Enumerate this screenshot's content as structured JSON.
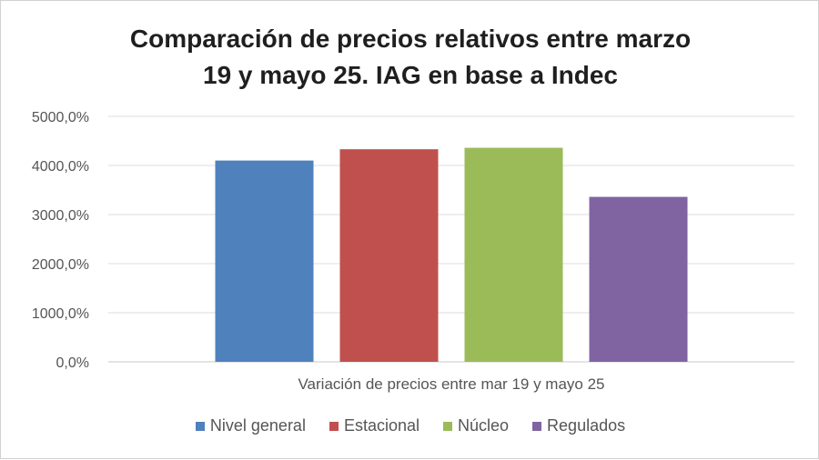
{
  "chart_data": {
    "type": "bar",
    "title_lines": [
      "Comparación de precios relativos entre marzo",
      "19 y mayo 25. IAG en base a Indec"
    ],
    "categories": [
      "Variación de precios entre mar 19 y mayo 25"
    ],
    "series": [
      {
        "name": "Nivel general",
        "values": [
          4100
        ],
        "color": "#4f81bd"
      },
      {
        "name": "Estacional",
        "values": [
          4330
        ],
        "color": "#c0504d"
      },
      {
        "name": "Núcleo",
        "values": [
          4360
        ],
        "color": "#9bbb59"
      },
      {
        "name": "Regulados",
        "values": [
          3360
        ],
        "color": "#8064a2"
      }
    ],
    "ylim": [
      0,
      5000
    ],
    "yticks": [
      {
        "value": 0,
        "label": "0,0%"
      },
      {
        "value": 1000,
        "label": "1000,0%"
      },
      {
        "value": 2000,
        "label": "2000,0%"
      },
      {
        "value": 3000,
        "label": "3000,0%"
      },
      {
        "value": 4000,
        "label": "4000,0%"
      },
      {
        "value": 5000,
        "label": "5000,0%"
      }
    ],
    "grid": true,
    "legend_position": "bottom"
  }
}
